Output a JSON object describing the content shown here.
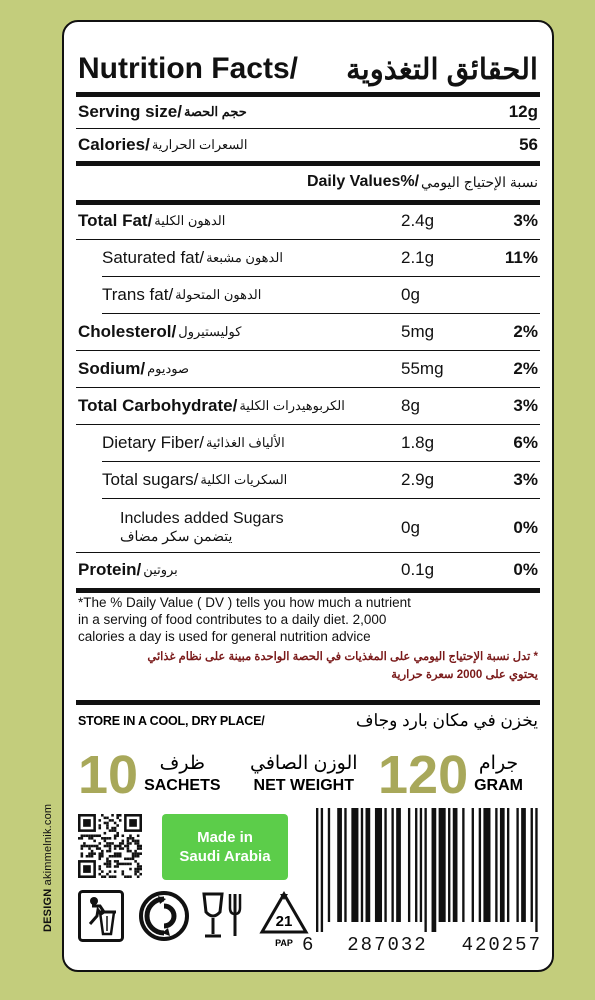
{
  "design_credit": {
    "prefix": "DESIGN",
    "name": "akimmelnik.com"
  },
  "title": {
    "en": "Nutrition Facts/",
    "ar": "الحقائق التغذوية"
  },
  "serving": {
    "label_en": "Serving size/",
    "label_ar": "حجم الحصة",
    "value": "12g"
  },
  "calories": {
    "label_en": "Calories/",
    "label_ar": "السعرات الحرارية",
    "value": "56"
  },
  "daily_values_header": {
    "en": "Daily Values%/",
    "ar": "نسبة الإحتياج اليومي"
  },
  "nutrients": [
    {
      "en": "Total Fat/",
      "ar": "الدهون الكلية",
      "amount": "2.4g",
      "pct": "3%",
      "indent": 0,
      "bold": true
    },
    {
      "en": "Saturated fat/",
      "ar": "الدهون مشبعة",
      "amount": "2.1g",
      "pct": "11%",
      "indent": 1,
      "bold": false
    },
    {
      "en": "Trans fat/",
      "ar": "الدهون المتحولة",
      "amount": "0g",
      "pct": "",
      "indent": 1,
      "bold": false
    },
    {
      "en": "Cholesterol/",
      "ar": "كوليستيرول",
      "amount": "5mg",
      "pct": "2%",
      "indent": 0,
      "bold": true
    },
    {
      "en": "Sodium/",
      "ar": "صوديوم",
      "amount": "55mg",
      "pct": "2%",
      "indent": 0,
      "bold": true
    },
    {
      "en": "Total Carbohydrate/",
      "ar": "الكربوهيدرات الكلية",
      "amount": "8g",
      "pct": "3%",
      "indent": 0,
      "bold": true
    },
    {
      "en": "Dietary Fiber/",
      "ar": "الألياف الغذائية",
      "amount": "1.8g",
      "pct": "6%",
      "indent": 1,
      "bold": false
    },
    {
      "en": "Total sugars/",
      "ar": "السكريات الكلية",
      "amount": "2.9g",
      "pct": "3%",
      "indent": 1,
      "bold": false
    }
  ],
  "added_sugars": {
    "en": "Includes added Sugars",
    "ar": "يتضمن سكر مضاف",
    "amount": "0g",
    "pct": "0%"
  },
  "protein": {
    "en": "Protein/",
    "ar": "بروتين",
    "amount": "0.1g",
    "pct": "0%"
  },
  "footnote_en": [
    "*The % Daily Value ( DV ) tells you how much a nutrient",
    "in a serving of food contributes to a daily diet. 2,000",
    "calories a day is used for general nutrition advice"
  ],
  "footnote_ar": [
    "* تدل نسبة الإحتياج اليومي على المغذيات في الحصة الواحدة مبينة على نظام غذائي",
    "يحتوي على 2000 سعرة حرارية"
  ],
  "storage": {
    "en": "STORE IN A COOL, DRY PLACE/",
    "ar": "يخزن في مكان بارد وجاف"
  },
  "sachets": {
    "number": "10",
    "ar": "ظرف",
    "en": "SACHETS"
  },
  "net_weight": {
    "ar": "الوزن الصافي",
    "en": "NET WEIGHT"
  },
  "gram": {
    "number": "120",
    "ar": "جرام",
    "en": "GRAM"
  },
  "made_in": [
    "Made in",
    "Saudi Arabia"
  ],
  "recycle_code": "21",
  "recycle_material": "PAP",
  "barcode_digits": [
    "6",
    "287032",
    "420257"
  ],
  "colors": {
    "background": "#c3cd7c",
    "number_accent": "#a8a85a",
    "made_in_badge": "#5ccd4a",
    "arabic_footnote": "#7a1a1a"
  }
}
